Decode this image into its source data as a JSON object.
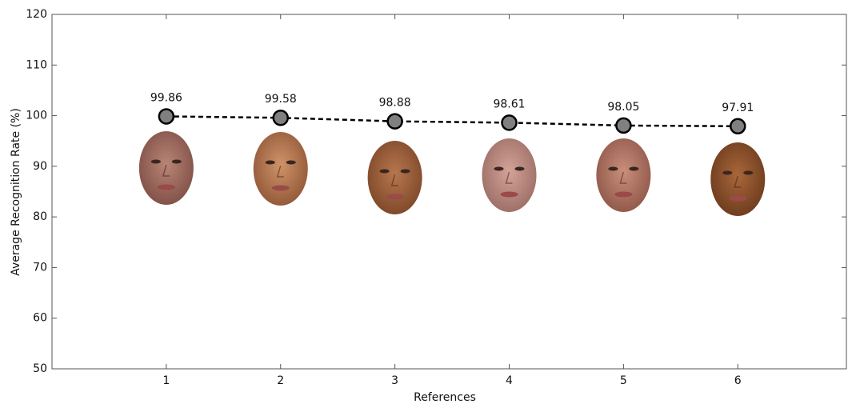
{
  "chart_data": {
    "type": "line",
    "x_label": "References",
    "y_label": "Average Recognition Rate (%)",
    "x": [
      1,
      2,
      3,
      4,
      5,
      6
    ],
    "values": [
      99.86,
      99.58,
      98.88,
      98.61,
      98.05,
      97.91
    ],
    "marker_color": "#808080",
    "line_color": "#000000",
    "linestyle": "dashed",
    "xlim": [
      0,
      6.95
    ],
    "xticks": [
      1,
      2,
      3,
      4,
      5,
      6
    ],
    "ylim": [
      50,
      120
    ],
    "yticks": [
      50,
      60,
      70,
      80,
      90,
      100,
      110,
      120
    ]
  }
}
